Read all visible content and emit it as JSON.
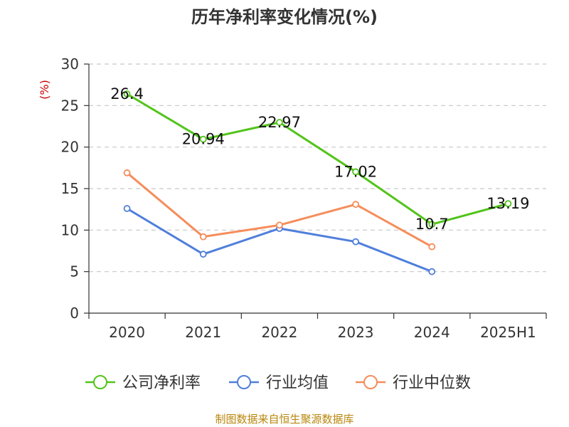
{
  "chart_data": {
    "type": "line",
    "title": "历年净利率变化情况(%)",
    "ylabel": "(%)",
    "xlabel": "",
    "categories": [
      "2020",
      "2021",
      "2022",
      "2023",
      "2024",
      "2025H1"
    ],
    "ylim": [
      0,
      30
    ],
    "yticks": [
      0,
      5,
      10,
      15,
      20,
      25,
      30
    ],
    "grid": "horizontal-dashed",
    "legend_position": "bottom",
    "series": [
      {
        "name": "公司净利率",
        "color": "#52c41a",
        "labels": true,
        "values": [
          26.4,
          20.94,
          22.97,
          17.02,
          10.7,
          13.19
        ],
        "value_labels": [
          "26.4",
          "20.94",
          "22.97",
          "17.02",
          "10.7",
          "13.19"
        ]
      },
      {
        "name": "行业均值",
        "color": "#4f7fdb",
        "labels": false,
        "values": [
          12.6,
          7.1,
          10.2,
          8.6,
          5.0,
          null
        ]
      },
      {
        "name": "行业中位数",
        "color": "#f58d5b",
        "labels": false,
        "values": [
          16.9,
          9.2,
          10.6,
          13.1,
          8.0,
          null
        ]
      }
    ]
  },
  "source_note": "制图数据来自恒生聚源数据库"
}
